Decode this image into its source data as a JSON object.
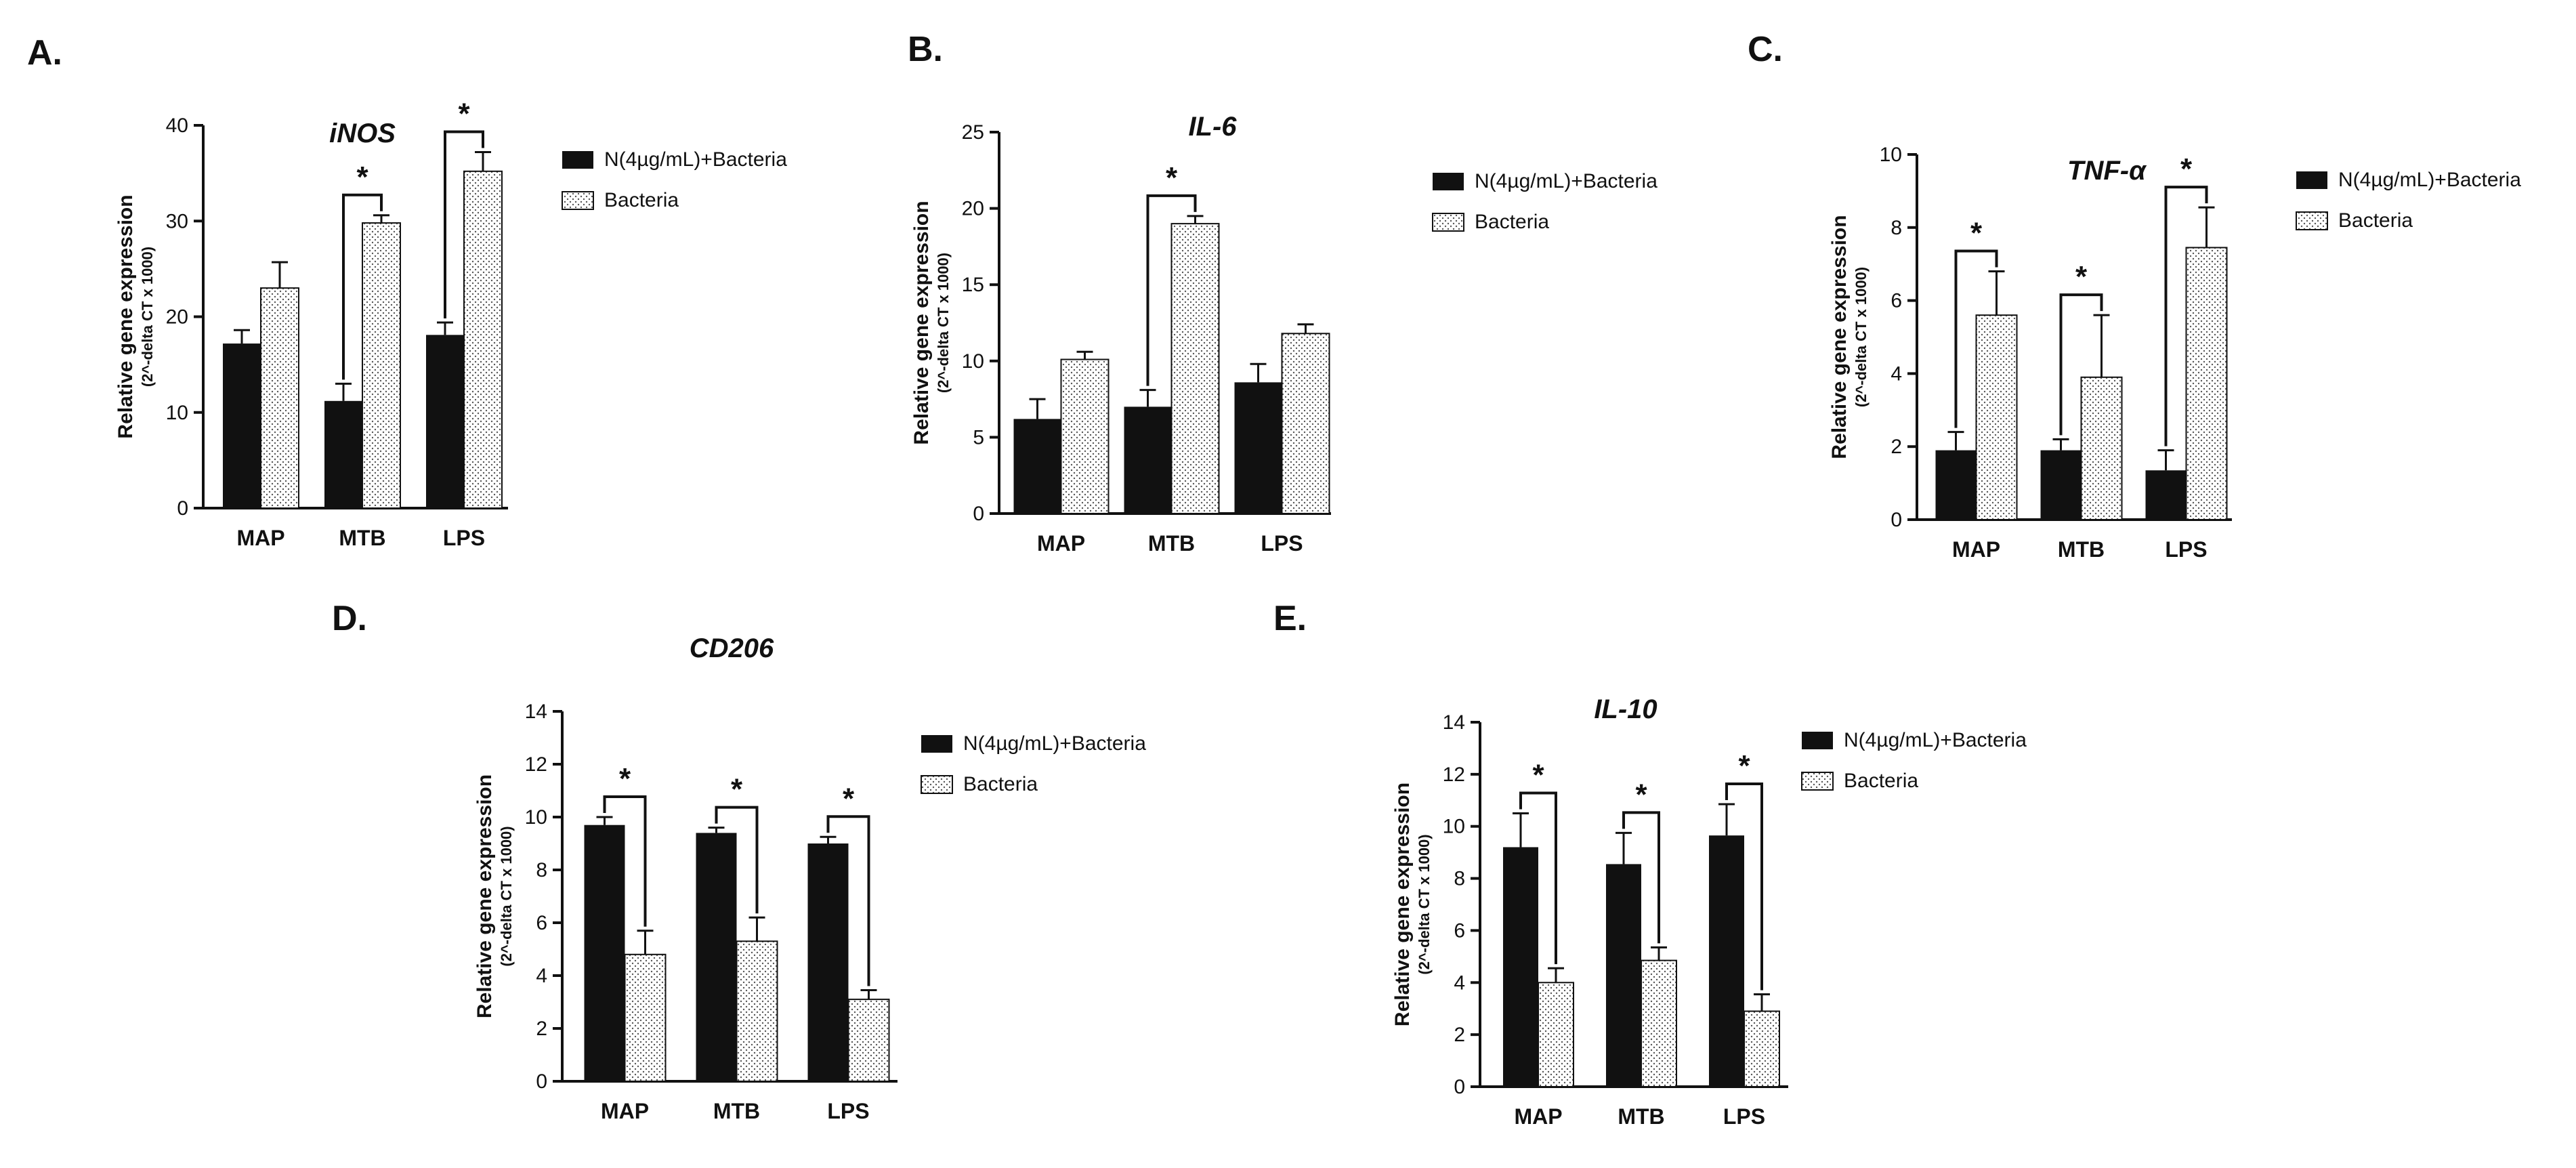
{
  "colors": {
    "treated": "#111111",
    "bacteria_dot": "#444444",
    "axis": "#111111"
  },
  "chart_data": [
    {
      "panel": "A.",
      "type": "bar",
      "title": "iNOS",
      "ylabel": "Relative gene expression",
      "ylabel_sub": "(2^-delta CT x 1000)",
      "categories": [
        "MAP",
        "MTB",
        "LPS"
      ],
      "ylim": [
        0,
        40
      ],
      "yticks": [
        0,
        10,
        20,
        30,
        40
      ],
      "series": [
        {
          "name": "N(4µg/mL)+Bacteria",
          "values": [
            17.2,
            11.2,
            18.1
          ],
          "errors": [
            1.4,
            1.8,
            1.3
          ]
        },
        {
          "name": "Bacteria",
          "values": [
            23.0,
            29.8,
            35.2
          ],
          "errors": [
            2.7,
            0.8,
            2.0
          ]
        }
      ],
      "significance": [
        "",
        "*",
        "*"
      ]
    },
    {
      "panel": "B.",
      "type": "bar",
      "title": "IL-6",
      "ylabel": "Relative gene expression",
      "ylabel_sub": "(2^-delta CT x 1000)",
      "categories": [
        "MAP",
        "MTB",
        "LPS"
      ],
      "ylim": [
        0,
        25
      ],
      "yticks": [
        0,
        5,
        10,
        15,
        20,
        25
      ],
      "series": [
        {
          "name": "N(4µg/mL)+Bacteria",
          "values": [
            6.2,
            7.0,
            8.6
          ],
          "errors": [
            1.3,
            1.1,
            1.2
          ]
        },
        {
          "name": "Bacteria",
          "values": [
            10.1,
            19.0,
            11.8
          ],
          "errors": [
            0.5,
            0.5,
            0.6
          ]
        }
      ],
      "significance": [
        "",
        "*",
        ""
      ]
    },
    {
      "panel": "C.",
      "type": "bar",
      "title": "TNF-α",
      "ylabel": "Relative gene expression",
      "ylabel_sub": "(2^-delta CT x 1000)",
      "categories": [
        "MAP",
        "MTB",
        "LPS"
      ],
      "ylim": [
        0,
        10
      ],
      "yticks": [
        0,
        2,
        4,
        6,
        8,
        10
      ],
      "series": [
        {
          "name": "N(4µg/mL)+Bacteria",
          "values": [
            1.9,
            1.9,
            1.35
          ],
          "errors": [
            0.5,
            0.3,
            0.55
          ]
        },
        {
          "name": "Bacteria",
          "values": [
            5.6,
            3.9,
            7.45
          ],
          "errors": [
            1.2,
            1.7,
            1.1
          ]
        }
      ],
      "significance": [
        "*",
        "*",
        "*"
      ]
    },
    {
      "panel": "D.",
      "type": "bar",
      "title": "CD206",
      "ylabel": "Relative gene expression",
      "ylabel_sub": "(2^-delta CT x 1000)",
      "categories": [
        "MAP",
        "MTB",
        "LPS"
      ],
      "ylim": [
        0,
        14
      ],
      "yticks": [
        0,
        2,
        4,
        6,
        8,
        10,
        12,
        14
      ],
      "series": [
        {
          "name": "N(4µg/mL)+Bacteria",
          "values": [
            9.7,
            9.4,
            9.0
          ],
          "errors": [
            0.3,
            0.2,
            0.25
          ]
        },
        {
          "name": "Bacteria",
          "values": [
            4.8,
            5.3,
            3.1
          ],
          "errors": [
            0.9,
            0.9,
            0.35
          ]
        }
      ],
      "significance": [
        "*",
        "*",
        "*"
      ]
    },
    {
      "panel": "E.",
      "type": "bar",
      "title": "IL-10",
      "ylabel": "Relative gene expression",
      "ylabel_sub": "(2^-delta CT x 1000)",
      "categories": [
        "MAP",
        "MTB",
        "LPS"
      ],
      "ylim": [
        0,
        14
      ],
      "yticks": [
        0,
        2,
        4,
        6,
        8,
        10,
        12,
        14
      ],
      "series": [
        {
          "name": "N(4µg/mL)+Bacteria",
          "values": [
            9.2,
            8.55,
            9.65
          ],
          "errors": [
            1.3,
            1.2,
            1.2
          ]
        },
        {
          "name": "Bacteria",
          "values": [
            4.0,
            4.85,
            2.9
          ],
          "errors": [
            0.55,
            0.5,
            0.65
          ]
        }
      ],
      "significance": [
        "*",
        "*",
        "*"
      ]
    }
  ]
}
